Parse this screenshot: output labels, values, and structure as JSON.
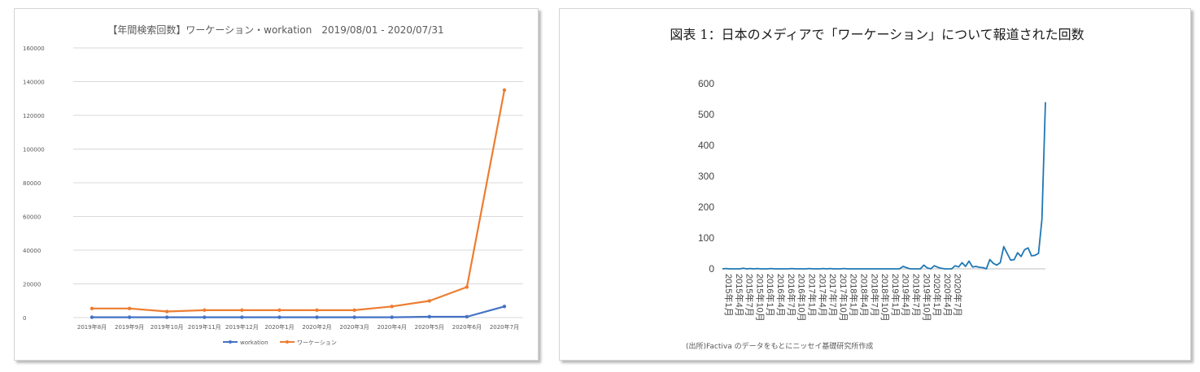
{
  "chart_data": [
    {
      "type": "line",
      "title": "【年間検索回数】ワーケーション・workation　2019/08/01 - 2020/07/31",
      "categories": [
        "2019年8月",
        "2019年9月",
        "2019年10月",
        "2019年11月",
        "2019年12月",
        "2020年1月",
        "2020年2月",
        "2020年3月",
        "2020年4月",
        "2020年5月",
        "2020年6月",
        "2020年7月"
      ],
      "series": [
        {
          "name": "workation",
          "color": "#4472c4",
          "values": [
            200,
            200,
            200,
            200,
            200,
            200,
            200,
            200,
            200,
            500,
            500,
            6600
          ]
        },
        {
          "name": "ワーケーション",
          "color": "#ed7d31",
          "values": [
            5400,
            5400,
            3600,
            4400,
            4400,
            4400,
            4400,
            4400,
            6600,
            9900,
            18100,
            135000
          ]
        }
      ],
      "yticks": [
        "0",
        "20000",
        "40000",
        "60000",
        "80000",
        "100000",
        "120000",
        "140000",
        "160000"
      ],
      "ylim": [
        0,
        160000
      ],
      "grid": true,
      "legend": "bottom"
    },
    {
      "type": "line",
      "title": "図表 1：日本のメディアで「ワーケーション」について報道された回数",
      "x_start": "2015年1月",
      "xticks": [
        "2015年1月",
        "2015年4月",
        "2015年7月",
        "2015年10月",
        "2016年1月",
        "2016年4月",
        "2016年7月",
        "2016年10月",
        "2017年1月",
        "2017年4月",
        "2017年7月",
        "2017年10月",
        "2018年1月",
        "2018年4月",
        "2018年7月",
        "2018年10月",
        "2019年1月",
        "2019年4月",
        "2019年7月",
        "2019年10月",
        "2020年1月",
        "2020年4月",
        "2020年7月"
      ],
      "series": [
        {
          "color": "#1f77b4",
          "values": [
            0,
            1,
            0,
            0,
            0,
            0,
            2,
            0,
            1,
            0,
            1,
            0,
            0,
            0,
            1,
            0,
            0,
            0,
            0,
            0,
            1,
            0,
            0,
            0,
            0,
            1,
            0,
            0,
            0,
            1,
            0,
            1,
            0,
            0,
            0,
            1,
            0,
            0,
            0,
            0,
            0,
            0,
            0,
            0,
            0,
            0,
            0,
            0,
            0,
            0,
            0,
            0,
            8,
            4,
            0,
            0,
            0,
            0,
            12,
            3,
            0,
            10,
            5,
            2,
            0,
            0,
            0,
            10,
            6,
            20,
            8,
            25,
            6,
            8,
            5,
            4,
            0,
            30,
            18,
            12,
            20,
            72,
            50,
            28,
            30,
            52,
            40,
            62,
            68,
            42,
            44,
            50,
            160,
            540
          ]
        }
      ],
      "yticks": [
        "0",
        "100",
        "200",
        "300",
        "400",
        "500",
        "600"
      ],
      "ylim": [
        0,
        600
      ],
      "grid": false,
      "source_note": "(出所)Factiva のデータをもとにニッセイ基礎研究所作成"
    }
  ]
}
